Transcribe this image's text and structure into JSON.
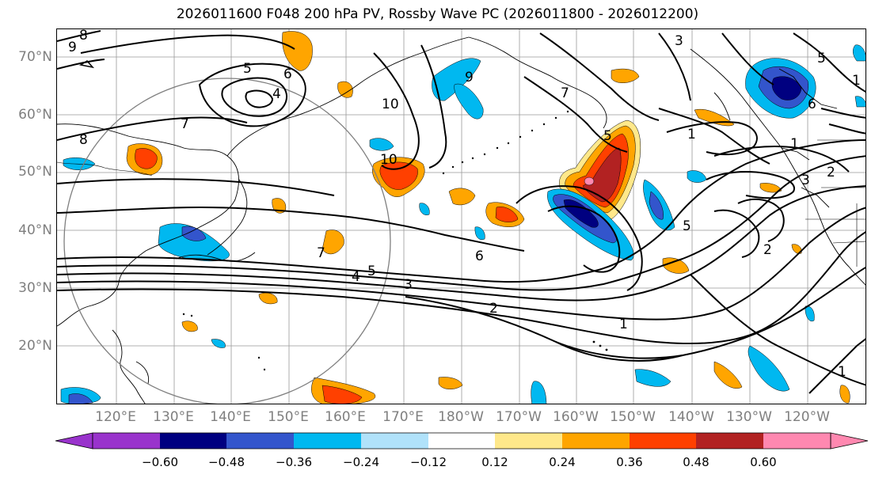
{
  "title": "2026011600 F048 200 hPa PV, Rossby Wave PC (2026011800 - 2026012200)",
  "latitudes": [
    "70°N",
    "60°N",
    "50°N",
    "40°N",
    "30°N",
    "20°N"
  ],
  "longitudes": [
    "120°E",
    "130°E",
    "140°E",
    "150°E",
    "160°E",
    "170°E",
    "180°W",
    "170°W",
    "160°W",
    "150°W",
    "140°W",
    "130°W",
    "120°W"
  ],
  "colorbar": {
    "ticks": [
      "−0.60",
      "−0.48",
      "−0.36",
      "−0.24",
      "−0.12",
      "0.12",
      "0.24",
      "0.36",
      "0.48",
      "0.60"
    ],
    "colors": [
      "#9933cc",
      "#000080",
      "#3355cc",
      "#00b8f0",
      "#b0e2fa",
      "#ffffff",
      "#ffe88a",
      "#ffa500",
      "#ff4000",
      "#b22222",
      "#ff88b0"
    ]
  },
  "contour_labels": [
    "9",
    "8",
    "5",
    "6",
    "4",
    "7",
    "8",
    "10",
    "10",
    "9",
    "3",
    "7",
    "5",
    "1",
    "1",
    "3",
    "2",
    "6",
    "7",
    "4",
    "5",
    "3",
    "2",
    "1",
    "6",
    "5",
    "1",
    "1",
    "5",
    "2"
  ]
}
